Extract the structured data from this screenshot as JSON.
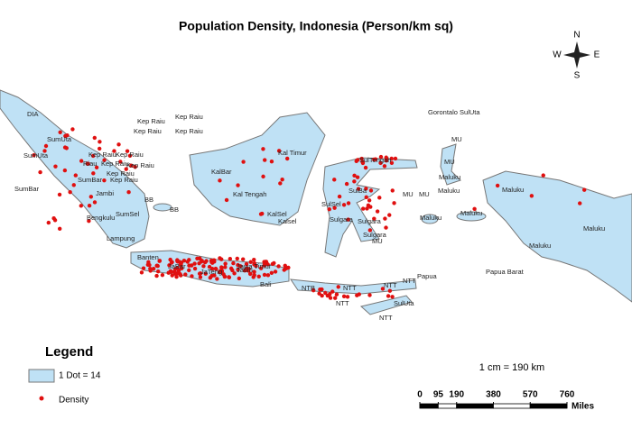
{
  "title": "Population Density, Indonesia (Person/km sq)",
  "compass": {
    "n": "N",
    "e": "E",
    "s": "S",
    "w": "W"
  },
  "regions": [
    "DIA",
    "SumUta",
    "SumUta",
    "Kep Raiu",
    "Kep Raiu",
    "Riau",
    "Kep Raiu",
    "SumBar",
    "Kep Raiu",
    "Kep Raiu",
    "Kep Raiu",
    "Jambi",
    "SumBar",
    "BB",
    "Bengkulu",
    "SumSel",
    "BB",
    "Lampung",
    "Kep Raiu",
    "Kep Raiu",
    "Kep Raiu",
    "Kep Raiu",
    "KalBar",
    "Kal Tengah",
    "Kal Timur",
    "KalSel",
    "Kalsel",
    "Banten",
    "JaBar",
    "JaTeng",
    "Jatim",
    "Bali",
    "Jawa Timur",
    "NTB",
    "NTT",
    "NTT",
    "NTT",
    "NTT",
    "NTT",
    "SulUta",
    "Gorontalo SulUta",
    "SulTengah",
    "SulBa",
    "SulSel",
    "Sulgara",
    "Sulgara",
    "Sulgara",
    "MU",
    "MU",
    "MU",
    "MU",
    "MU",
    "Maluku",
    "Maluku",
    "Maluku",
    "Maluku",
    "Papua Barat",
    "Papua",
    "Maluku",
    "Maluku",
    "Maluku"
  ],
  "legend": {
    "title": "Legend",
    "items": [
      "1 Dot = 14",
      "Density"
    ]
  },
  "scale": {
    "ratio": "1 cm = 190 km",
    "ticks": [
      0,
      95,
      190,
      380,
      570,
      760
    ],
    "unit": "Miles"
  }
}
